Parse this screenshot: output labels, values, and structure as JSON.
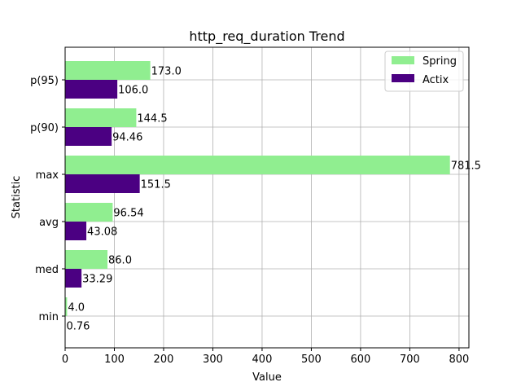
{
  "chart_data": {
    "type": "bar",
    "orientation": "horizontal",
    "title": "http_req_duration Trend",
    "xlabel": "Value",
    "ylabel": "Statistic",
    "categories": [
      "min",
      "med",
      "avg",
      "max",
      "p(90)",
      "p(95)"
    ],
    "series": [
      {
        "name": "Spring",
        "color": "#90ee90",
        "values": [
          4.0,
          86.0,
          96.54,
          781.5,
          144.5,
          173.0
        ],
        "labels": [
          "4.0",
          "86.0",
          "96.54",
          "781.5",
          "144.5",
          "173.0"
        ]
      },
      {
        "name": "Actix",
        "color": "#4b0082",
        "values": [
          0.76,
          33.29,
          43.08,
          151.5,
          94.46,
          106.0
        ],
        "labels": [
          "0.76",
          "33.29",
          "43.08",
          "151.5",
          "94.46",
          "106.0"
        ]
      }
    ],
    "xlim": [
      0,
      820
    ],
    "xticks": [
      0,
      100,
      200,
      300,
      400,
      500,
      600,
      700,
      800
    ],
    "grid": true,
    "legend_position": "top-right"
  }
}
